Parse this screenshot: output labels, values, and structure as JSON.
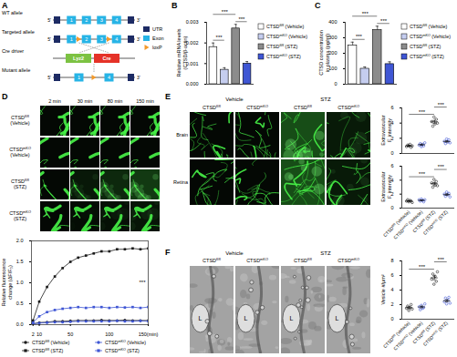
{
  "figure": {
    "panel_labels": [
      "A",
      "B",
      "C",
      "D",
      "E",
      "F"
    ],
    "A": {
      "rows": [
        {
          "label": "WT allele",
          "kind": "gene",
          "exons": [
            "1",
            "2",
            "3",
            "4"
          ],
          "loxp": []
        },
        {
          "label": "Targeted allele",
          "kind": "gene",
          "exons": [
            "1",
            "2",
            "3",
            "4"
          ],
          "loxp": [
            1,
            3
          ]
        },
        {
          "label": "Cre driver",
          "kind": "driver",
          "boxes": [
            {
              "text": "Lyz2",
              "color": "#7cc242"
            },
            {
              "text": "Cre",
              "color": "#e53228"
            }
          ]
        },
        {
          "label": "Mutant allele",
          "kind": "gene",
          "exons": [
            "1",
            "4"
          ],
          "loxp": [
            1
          ]
        }
      ],
      "ends": [
        "5'",
        "3'"
      ],
      "legend": [
        {
          "label": "UTR",
          "color": "#1d2b64",
          "shape": "box"
        },
        {
          "label": "Exon",
          "color": "#27b4e6",
          "shape": "box"
        },
        {
          "label": "loxP",
          "color": "#f39a2b",
          "shape": "triangle"
        }
      ]
    },
    "D_images": {
      "times": [
        "2 min",
        "30 min",
        "80 min",
        "150 min"
      ],
      "rows": [
        "CTSDfl/fl (Vehicle)",
        "CTSDmKO (Vehicle)",
        "CTSDfl/fl (STZ)",
        "CTSDmKO (STZ)"
      ]
    },
    "E_images": {
      "treatments": [
        "Vehicle",
        "STZ"
      ],
      "tissues": [
        "Brain",
        "Retina"
      ],
      "columns": [
        "CTSDfl/fl",
        "CTSDmKO",
        "CTSDfl/fl",
        "CTSDmKO"
      ]
    },
    "F_images": {
      "treatments": [
        "Vehicle",
        "STZ"
      ],
      "columns": [
        "CTSDfl/fl",
        "CTSDmKO",
        "CTSDfl/fl",
        "CTSDmKO"
      ],
      "lumen_label": "L"
    }
  },
  "chart_data": [
    {
      "type": "bar",
      "categories": [
        "CTSDfl/fl (Vehicle)",
        "CTSDmKO (Vehicle)",
        "CTSDfl/fl (STZ)",
        "CTSDmKO (STZ)"
      ],
      "values": [
        0.0018,
        0.0007,
        0.0027,
        0.001
      ],
      "errors": [
        0.0002,
        0.0001,
        0.0002,
        0.0001
      ],
      "colors": [
        "#ffffff",
        "#c5cdef",
        "#8c8c8c",
        "#3f56d4"
      ],
      "ylabel": "Relative mRNA levels\n(CTSD/β-actin)",
      "ylim": [
        0,
        0.003
      ],
      "yticks": [
        {
          "value": 0,
          "label": "0.000"
        },
        0.001,
        0.002,
        0.003
      ],
      "legend": "right",
      "tick_labels": "y",
      "significance": [
        {
          "pair": [
            0,
            1
          ],
          "label": "***"
        },
        {
          "pair": [
            2,
            3
          ],
          "label": "***"
        },
        {
          "pair": [
            0,
            2
          ],
          "label": "***"
        }
      ]
    },
    {
      "type": "bar",
      "categories": [
        "CTSDfl/fl (Vehicle)",
        "CTSDmKO (Vehicle)",
        "CTSDfl/fl (STZ)",
        "CTSDmKO (STZ)"
      ],
      "values": [
        250,
        100,
        350,
        130
      ],
      "errors": [
        22,
        12,
        25,
        15
      ],
      "colors": [
        "#ffffff",
        "#c5cdef",
        "#8c8c8c",
        "#3f56d4"
      ],
      "ylabel": "CTSD concentration\nin plasma (pg/ml)",
      "ylim": [
        0,
        400
      ],
      "yticks": [
        0,
        100,
        200,
        300,
        400
      ],
      "legend": "right",
      "tick_labels": "y",
      "significance": [
        {
          "pair": [
            0,
            1
          ],
          "label": "***"
        },
        {
          "pair": [
            2,
            3
          ],
          "label": "***"
        },
        {
          "pair": [
            0,
            2
          ],
          "label": "***"
        }
      ]
    },
    {
      "type": "line",
      "x": [
        2,
        10,
        20,
        30,
        40,
        50,
        60,
        70,
        80,
        90,
        100,
        110,
        120,
        130,
        140,
        150
      ],
      "xlim": [
        0,
        150
      ],
      "xticks": [
        2,
        10,
        50,
        100,
        {
          "value": 150,
          "label": "150(min)"
        }
      ],
      "ylim": [
        0,
        2
      ],
      "yticks": [
        {
          "value": 0,
          "label": "0.0"
        },
        0.5,
        {
          "value": 1,
          "label": "1.0"
        },
        1.5,
        {
          "value": 2,
          "label": "2.0"
        }
      ],
      "ylabel": "Relative fluorescence\nchange (ΔF/F₀)",
      "legend": "bottom",
      "annotation": "***",
      "series": [
        {
          "name": "CTSDfl/fl (Vehicle)",
          "color": "#1a1a1a",
          "marker": "circle",
          "values": [
            0.02,
            0.05,
            0.06,
            0.08,
            0.08,
            0.09,
            0.1,
            0.1,
            0.1,
            0.11,
            0.1,
            0.1,
            0.11,
            0.1,
            0.1,
            0.1
          ]
        },
        {
          "name": "CTSDmKO (Vehicle)",
          "color": "#3f56d4",
          "marker": "circle",
          "values": [
            0.02,
            0.04,
            0.05,
            0.06,
            0.06,
            0.07,
            0.08,
            0.08,
            0.08,
            0.08,
            0.08,
            0.09,
            0.08,
            0.08,
            0.09,
            0.08
          ]
        },
        {
          "name": "CTSDfl/fl (STZ)",
          "color": "#1a1a1a",
          "marker": "square",
          "values": [
            0.1,
            0.55,
            0.9,
            1.15,
            1.35,
            1.5,
            1.6,
            1.65,
            1.7,
            1.75,
            1.75,
            1.8,
            1.8,
            1.82,
            1.8,
            1.82
          ]
        },
        {
          "name": "CTSDmKO (STZ)",
          "color": "#3f56d4",
          "marker": "square",
          "values": [
            0.05,
            0.2,
            0.3,
            0.35,
            0.38,
            0.4,
            0.42,
            0.4,
            0.42,
            0.42,
            0.4,
            0.42,
            0.41,
            0.42,
            0.4,
            0.42
          ]
        }
      ]
    },
    {
      "type": "scatter",
      "categories": [
        "CTSDfl/fl (Vehicle)",
        "CTSDmKO (Vehicle)",
        "CTSDfl/fl (STZ)",
        "CTSDmKO (STZ)"
      ],
      "points": [
        [
          0.9,
          1.1,
          1.0,
          1.2,
          0.8,
          1.0
        ],
        [
          1.1,
          1.3,
          0.9,
          1.2,
          1.0,
          1.4
        ],
        [
          4.2,
          3.6,
          4.8,
          3.9,
          4.5,
          4.0
        ],
        [
          1.6,
          1.3,
          1.9,
          1.5,
          1.8,
          1.4
        ]
      ],
      "means": [
        1.0,
        1.15,
        4.17,
        1.58
      ],
      "errors": [
        0.06,
        0.08,
        0.18,
        0.09
      ],
      "colors": [
        "#1a1a1a",
        "#3f56d4",
        "#1a1a1a",
        "#3f56d4"
      ],
      "ylabel": "Extravascular\nF. intensity",
      "ylim": [
        0,
        6
      ],
      "yticks": [
        0,
        2,
        4,
        6
      ],
      "tick_labels": "y",
      "significance": [
        {
          "pair": [
            0,
            2
          ],
          "label": "***"
        },
        {
          "pair": [
            2,
            3
          ],
          "label": "***"
        }
      ]
    },
    {
      "type": "scatter",
      "categories": [
        "CTSDfl/fl (Vehicle)",
        "CTSDmKO (Vehicle)",
        "CTSDfl/fl (STZ)",
        "CTSDmKO (STZ)"
      ],
      "points": [
        [
          1.0,
          1.2,
          0.9,
          1.1,
          1.0,
          0.8
        ],
        [
          1.2,
          1.0,
          1.3,
          1.1,
          0.9,
          1.2
        ],
        [
          3.6,
          3.0,
          4.1,
          3.3,
          3.8,
          3.2
        ],
        [
          2.0,
          1.7,
          2.3,
          1.9,
          2.1,
          1.6
        ]
      ],
      "means": [
        1.0,
        1.12,
        3.5,
        1.93
      ],
      "errors": [
        0.06,
        0.06,
        0.17,
        0.11
      ],
      "colors": [
        "#1a1a1a",
        "#3f56d4",
        "#1a1a1a",
        "#3f56d4"
      ],
      "ylabel": "Extravascular\nF. intensity",
      "ylim": [
        0,
        6
      ],
      "yticks": [
        0,
        2,
        4,
        6
      ],
      "significance": [
        {
          "pair": [
            0,
            2
          ],
          "label": "***"
        },
        {
          "pair": [
            2,
            3
          ],
          "label": "***"
        }
      ]
    },
    {
      "type": "scatter",
      "categories": [
        "CTSDfl/fl (Vehicle)",
        "CTSDmKO (Vehicle)",
        "CTSDfl/fl (STZ)",
        "CTSDmKO (STZ)"
      ],
      "points": [
        [
          1.5,
          1.8,
          1.2,
          1.6,
          2.0,
          1.4
        ],
        [
          1.7,
          1.3,
          1.9,
          1.5,
          1.6,
          2.1
        ],
        [
          5.5,
          6.2,
          4.8,
          5.9,
          5.2,
          6.5
        ],
        [
          2.4,
          2.9,
          2.1,
          2.6,
          3.0,
          2.2
        ]
      ],
      "means": [
        1.58,
        1.68,
        5.68,
        2.53
      ],
      "errors": [
        0.12,
        0.12,
        0.26,
        0.14
      ],
      "colors": [
        "#1a1a1a",
        "#3f56d4",
        "#1a1a1a",
        "#3f56d4"
      ],
      "ylabel": "Vesicle #/μm²",
      "ylim": [
        0,
        8
      ],
      "yticks": [
        0,
        2,
        4,
        6,
        8
      ],
      "significance": [
        {
          "pair": [
            0,
            2
          ],
          "label": "***"
        },
        {
          "pair": [
            2,
            3
          ],
          "label": "***"
        }
      ]
    }
  ]
}
